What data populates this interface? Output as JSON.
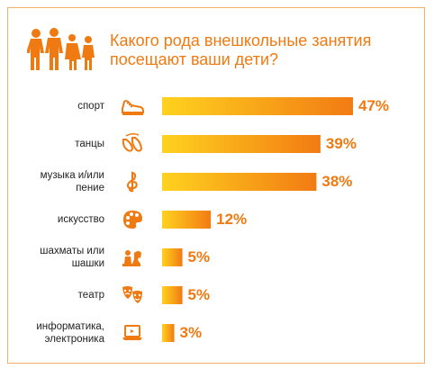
{
  "title_line1": "Какого рода внешкольные занятия",
  "title_line2": "посещают ваши дети?",
  "colors": {
    "accent": "#f07a12",
    "bar_start": "#ffd21f",
    "bar_end": "#f27b13",
    "border": "#f4b06a"
  },
  "chart_data": {
    "type": "bar",
    "orientation": "horizontal",
    "title": "Какого рода внешкольные занятия посещают ваши дети?",
    "categories": [
      "спорт",
      "танцы",
      "музыка и/или пение",
      "искусство",
      "шахматы или шашки",
      "театр",
      "информатика, электроника"
    ],
    "category_lines": [
      [
        "спорт"
      ],
      [
        "танцы"
      ],
      [
        "музыка и/или",
        "пение"
      ],
      [
        "искусство"
      ],
      [
        "шахматы или",
        "шашки"
      ],
      [
        "театр"
      ],
      [
        "информатика,",
        "электроника"
      ]
    ],
    "icons": [
      "sneaker-icon",
      "ballet-shoes-icon",
      "treble-clef-icon",
      "palette-icon",
      "chess-pieces-icon",
      "theatre-masks-icon",
      "laptop-icon"
    ],
    "values": [
      47,
      39,
      38,
      12,
      5,
      5,
      3
    ],
    "value_labels": [
      "47%",
      "39%",
      "38%",
      "12%",
      "5%",
      "5%",
      "3%"
    ],
    "unit": "%",
    "xlim": [
      0,
      47
    ],
    "grid": false,
    "legend": false
  }
}
